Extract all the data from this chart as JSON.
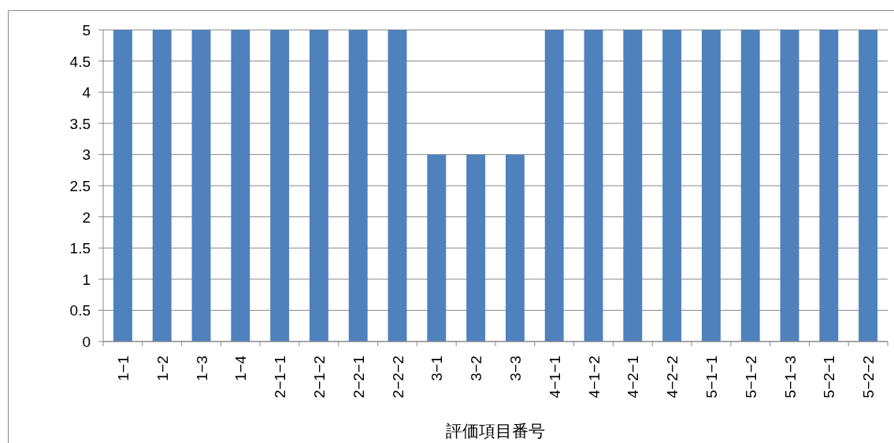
{
  "chart_data": {
    "type": "bar",
    "xlabel": "評価項目番号",
    "categories": [
      "1−1",
      "1−2",
      "1−3",
      "1−4",
      "2−1−1",
      "2−1−2",
      "2−2−1",
      "2−2−2",
      "3−1",
      "3−2",
      "3−3",
      "4−1−1",
      "4−1−2",
      "4−2−1",
      "4−2−2",
      "5−1−1",
      "5−1−2",
      "5−1−3",
      "5−2−1",
      "5−2−2"
    ],
    "values": [
      5,
      5,
      5,
      5,
      5,
      5,
      5,
      5,
      3,
      3,
      3,
      5,
      5,
      5,
      5,
      5,
      5,
      5,
      5,
      5
    ],
    "color": "#4f81bd",
    "ylim": [
      0,
      5
    ],
    "yticks": [
      0,
      0.5,
      1,
      1.5,
      2,
      2.5,
      3,
      3.5,
      4,
      4.5,
      5
    ],
    "grid": "y"
  }
}
